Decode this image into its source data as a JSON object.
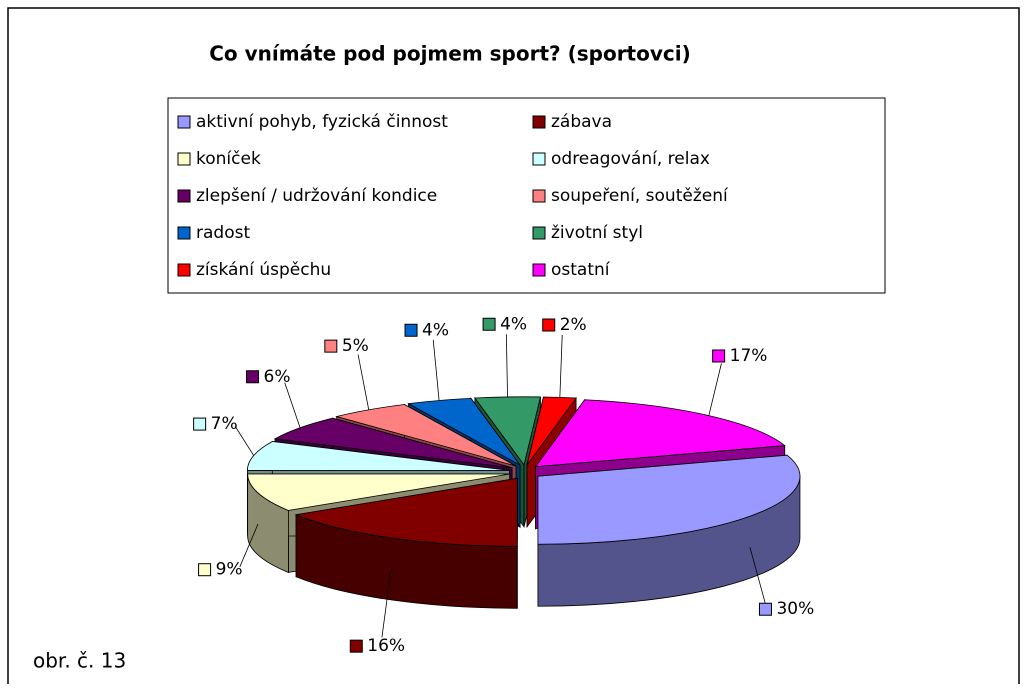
{
  "chart_data": {
    "type": "pie3d",
    "title": "Co vnímáte pod pojmem sport? (sportovci)",
    "categories": [
      "aktivní pohyb, fyzická činnost",
      "zábava",
      "koníček",
      "odreagování, relax",
      "zlepšení / udržování kondice",
      "soupeření, soutěžení",
      "radost",
      "životní styl",
      "získání úspěchu",
      "ostatní"
    ],
    "values": [
      30,
      16,
      9,
      7,
      6,
      5,
      4,
      4,
      2,
      17
    ],
    "value_labels": [
      "30%",
      "16%",
      "9%",
      "7%",
      "6%",
      "5%",
      "4%",
      "4%",
      "2%",
      "17%"
    ],
    "colors": [
      "#9999ff",
      "#800000",
      "#ffffcc",
      "#ccffff",
      "#660066",
      "#ff8080",
      "#0066cc",
      "#339966",
      "#ff0000",
      "#ff00ff"
    ],
    "legend": "top"
  },
  "caption": "obr. č. 13"
}
